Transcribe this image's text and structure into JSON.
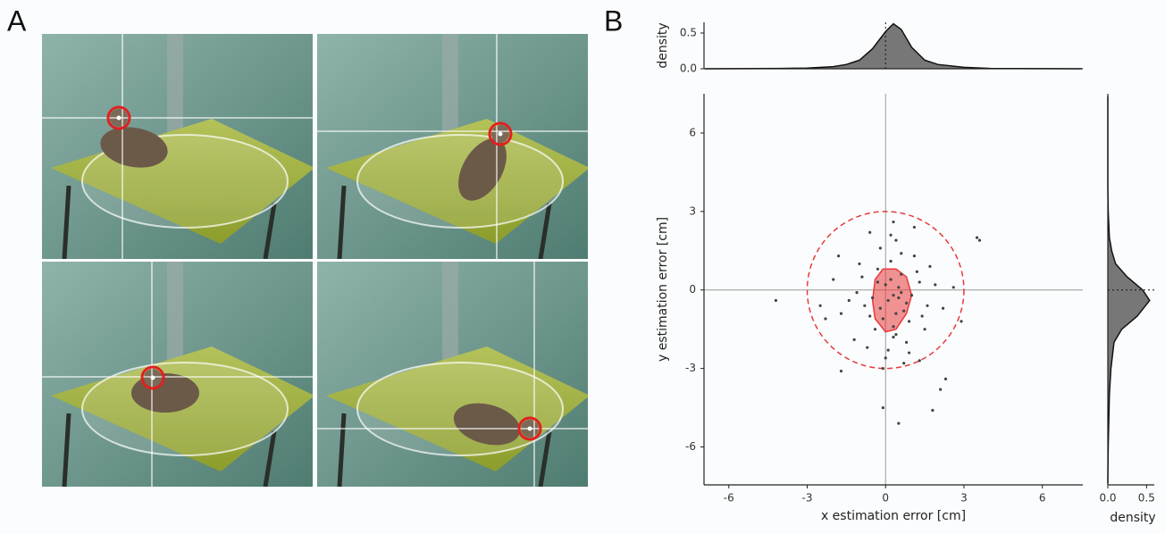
{
  "panel_labels": [
    "A",
    "B"
  ],
  "chart_data": [
    {
      "type": "scatter",
      "xlabel": "x estimation error [cm]",
      "ylabel": "y estimation error [cm]",
      "x": [
        0.1,
        0.3,
        -0.2,
        0.5,
        0.4,
        -0.5,
        0.8,
        0.2,
        -0.1,
        0.6,
        1.0,
        -0.8,
        0.3,
        0.0,
        0.7,
        -0.3,
        1.3,
        -1.1,
        0.4,
        0.9,
        -0.6,
        1.6,
        0.2,
        -0.4,
        0.5,
        1.2,
        -1.4,
        0.8,
        -0.9,
        0.1,
        1.9,
        -1.7,
        0.6,
        0.3,
        -0.2,
        1.5,
        -1.2,
        0.0,
        2.2,
        -2.0,
        0.7,
        1.1,
        -0.7,
        0.4,
        -0.1,
        2.6,
        -2.3,
        0.9,
        0.2,
        1.4,
        -4.2,
        3.5,
        3.6,
        2.1,
        1.8,
        0.5,
        -0.1,
        -1.7,
        2.3,
        1.1,
        -0.6,
        0.3,
        -1.8,
        2.9,
        -2.5,
        1.7,
        -1.0,
        0.6,
        -0.3,
        1.3
      ],
      "values": [
        -0.4,
        -0.2,
        -0.7,
        0.1,
        -0.9,
        -0.3,
        -0.5,
        0.4,
        -1.1,
        0.6,
        -0.2,
        -0.6,
        -1.4,
        0.2,
        -0.8,
        0.8,
        0.3,
        -0.1,
        -1.7,
        -1.2,
        -1.0,
        -0.6,
        1.1,
        -1.5,
        -0.3,
        0.7,
        -0.4,
        -2.0,
        0.5,
        -2.3,
        0.2,
        -0.9,
        1.4,
        -1.8,
        1.6,
        -1.5,
        -1.9,
        -2.6,
        -0.7,
        0.4,
        -2.8,
        1.3,
        -2.2,
        1.9,
        -3.0,
        0.1,
        -1.1,
        -2.4,
        2.1,
        -1.0,
        -0.4,
        2.0,
        1.9,
        -3.8,
        -4.6,
        -5.1,
        -4.5,
        -3.1,
        -3.4,
        2.4,
        2.2,
        2.6,
        1.3,
        -1.2,
        -0.6,
        0.9,
        1.0,
        -0.1,
        0.3,
        -2.7
      ],
      "color": "#444444",
      "xlim": [
        -6.95,
        7.55
      ],
      "ylim": [
        -7.45,
        7.5
      ],
      "xticks": [
        -6,
        -3,
        0,
        3,
        6
      ],
      "yticks": [
        -6,
        -3,
        0,
        3,
        6
      ],
      "circle_radius": 3,
      "circle_color": "#e8393b",
      "contour": {
        "x": [
          -0.4,
          -0.1,
          0.4,
          0.8,
          1.0,
          0.8,
          0.4,
          0.0,
          -0.4,
          -0.5
        ],
        "y": [
          0.4,
          0.8,
          0.8,
          0.5,
          -0.2,
          -0.9,
          -1.5,
          -1.6,
          -1.1,
          -0.4
        ],
        "color": "#e8393b"
      }
    },
    {
      "type": "area",
      "ylabel": "density",
      "x": [
        -6.9,
        -4,
        -3,
        -2,
        -1.5,
        -1,
        -0.5,
        0,
        0.3,
        0.6,
        1,
        1.5,
        2,
        3,
        4,
        7.5
      ],
      "values": [
        0,
        0.005,
        0.01,
        0.03,
        0.06,
        0.12,
        0.28,
        0.52,
        0.63,
        0.55,
        0.3,
        0.12,
        0.06,
        0.02,
        0.005,
        0
      ],
      "color": "#777777",
      "xlim": [
        -6.95,
        7.55
      ],
      "ylim": [
        0,
        0.65
      ],
      "yticks": [
        {
          "value": 0,
          "label": "0.0"
        },
        0.5
      ]
    },
    {
      "type": "area",
      "orientation": "horizontal",
      "xlabel": "density",
      "y": [
        -7.4,
        -6,
        -4,
        -3,
        -2,
        -1.5,
        -1,
        -0.4,
        0,
        0.5,
        1,
        1.5,
        2,
        3,
        4,
        7.4
      ],
      "values": [
        0,
        0.005,
        0.02,
        0.04,
        0.08,
        0.18,
        0.38,
        0.54,
        0.45,
        0.25,
        0.1,
        0.05,
        0.02,
        0.005,
        0,
        0
      ],
      "color": "#777777",
      "xlim": [
        0,
        0.6
      ],
      "ylim": [
        -7.45,
        7.5
      ],
      "xticks": [
        {
          "value": 0,
          "label": "0.0"
        },
        0.5
      ]
    }
  ]
}
